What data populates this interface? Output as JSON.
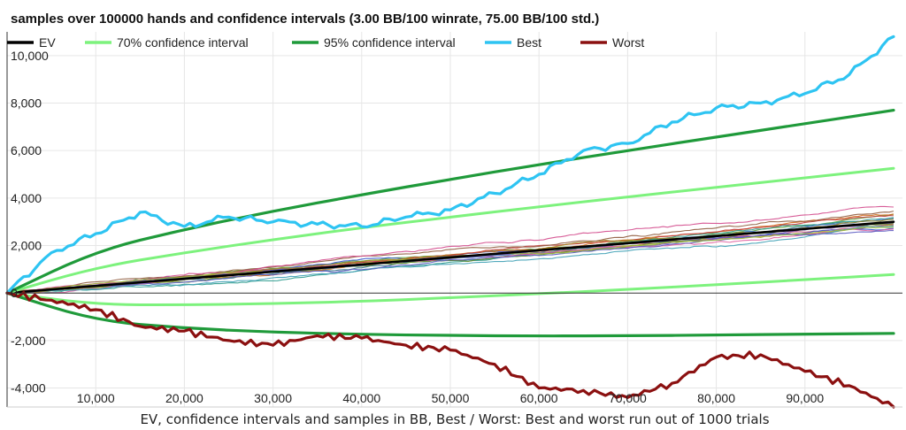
{
  "chart_data": {
    "type": "line",
    "title": "samples over 100000 hands and confidence intervals (3.00 BB/100 winrate, 75.00 BB/100 std.)",
    "xlabel": "EV, confidence intervals and samples in BB, Best / Worst: Best and worst run out of 1000 trials",
    "ylabel": "",
    "xlim": [
      0,
      101000
    ],
    "ylim": [
      -4800,
      11000
    ],
    "x_ticks": [
      10000,
      20000,
      30000,
      40000,
      50000,
      60000,
      70000,
      80000,
      90000
    ],
    "x_tick_labels": [
      "10,000",
      "20,000",
      "30,000",
      "40,000",
      "50,000",
      "60,000",
      "70,000",
      "80,000",
      "90,000"
    ],
    "y_ticks": [
      -4000,
      -2000,
      0,
      2000,
      4000,
      6000,
      8000,
      10000
    ],
    "y_tick_labels": [
      "-4,000",
      "-2,000",
      "0",
      "2,000",
      "4,000",
      "6,000",
      "8,000",
      "10,000"
    ],
    "grid": true,
    "legend_position": "top",
    "legend": [
      {
        "name": "EV",
        "color": "#000000"
      },
      {
        "name": "70% confidence interval",
        "color": "#7df27d"
      },
      {
        "name": "95% confidence interval",
        "color": "#1f9a3a"
      },
      {
        "name": "Best",
        "color": "#2ec4f2"
      },
      {
        "name": "Worst",
        "color": "#8b1010"
      }
    ],
    "model": {
      "winrate_bb_per_100": 3.0,
      "std_bb_per_100": 75.0
    },
    "series": [
      {
        "name": "EV",
        "color": "#000000",
        "x": [
          0,
          10000,
          20000,
          30000,
          40000,
          50000,
          60000,
          70000,
          80000,
          90000,
          100000
        ],
        "y": [
          0,
          300,
          600,
          900,
          1200,
          1500,
          1800,
          2100,
          2400,
          2700,
          3000
        ]
      },
      {
        "name": "70% confidence interval",
        "color": "#7df27d",
        "band": "upper",
        "x": [
          0,
          10000,
          20000,
          30000,
          40000,
          50000,
          60000,
          70000,
          80000,
          90000,
          100000
        ],
        "y": [
          0,
          1080,
          1700,
          2250,
          2750,
          3200,
          3630,
          4050,
          4450,
          4850,
          5250
        ]
      },
      {
        "name": "70% confidence interval",
        "color": "#7df27d",
        "band": "lower",
        "x": [
          0,
          10000,
          20000,
          30000,
          40000,
          50000,
          60000,
          70000,
          80000,
          90000,
          100000
        ],
        "y": [
          0,
          -490,
          -500,
          -450,
          -350,
          -200,
          -30,
          150,
          350,
          560,
          780
        ]
      },
      {
        "name": "95% confidence interval",
        "color": "#1f9a3a",
        "band": "upper",
        "x": [
          0,
          10000,
          20000,
          30000,
          40000,
          50000,
          60000,
          70000,
          80000,
          90000,
          100000
        ],
        "y": [
          0,
          1770,
          2680,
          3450,
          4140,
          4790,
          5410,
          6000,
          6570,
          7130,
          7700
        ]
      },
      {
        "name": "95% confidence interval",
        "color": "#1f9a3a",
        "band": "lower",
        "x": [
          0,
          10000,
          20000,
          30000,
          40000,
          50000,
          60000,
          70000,
          80000,
          90000,
          100000
        ],
        "y": [
          0,
          -1170,
          -1480,
          -1650,
          -1740,
          -1790,
          -1810,
          -1800,
          -1770,
          -1730,
          -1700
        ]
      },
      {
        "name": "Best",
        "color": "#2ec4f2",
        "x": [
          0,
          5000,
          10000,
          15000,
          20000,
          25000,
          30000,
          35000,
          40000,
          45000,
          50000,
          55000,
          60000,
          65000,
          70000,
          75000,
          80000,
          85000,
          90000,
          95000,
          100000
        ],
        "y": [
          0,
          1700,
          2500,
          3400,
          2800,
          3200,
          3000,
          2900,
          2800,
          3200,
          3500,
          4200,
          5000,
          6000,
          6300,
          7200,
          7800,
          8000,
          8400,
          9200,
          10800
        ]
      },
      {
        "name": "Worst",
        "color": "#8b1010",
        "x": [
          0,
          5000,
          10000,
          15000,
          20000,
          25000,
          30000,
          35000,
          40000,
          45000,
          50000,
          55000,
          60000,
          65000,
          70000,
          75000,
          80000,
          85000,
          90000,
          95000,
          100000
        ],
        "y": [
          0,
          -300,
          -700,
          -1400,
          -1600,
          -2000,
          -2200,
          -1800,
          -1900,
          -2200,
          -2400,
          -3000,
          -4000,
          -4100,
          -4400,
          -3800,
          -2700,
          -2600,
          -3300,
          -3900,
          -4800
        ]
      }
    ]
  }
}
